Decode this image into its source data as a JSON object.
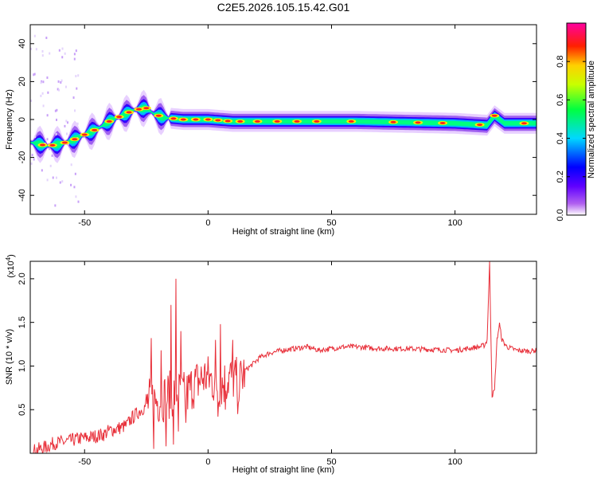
{
  "figure": {
    "title": "C2E5.2026.105.15.42.G01"
  },
  "chart_data": [
    {
      "type": "heatmap",
      "xlabel": "Height of straight line (km)",
      "ylabel": "Frequency (Hz)",
      "xlim": [
        -72,
        133
      ],
      "ylim": [
        -50,
        50
      ],
      "x_ticks": [
        -50,
        0,
        50,
        100
      ],
      "y_ticks": [
        -40,
        -20,
        0,
        20,
        40
      ],
      "colorbar": {
        "label": "Normalized spectral amplitude",
        "range": [
          0,
          1
        ],
        "ticks": [
          "0.0",
          "0.2",
          "0.4",
          "0.6",
          "0.8"
        ],
        "colors": [
          "#ffffff",
          "#8a2be2",
          "#0000ff",
          "#00ffff",
          "#00ff00",
          "#ffff00",
          "#ff0000",
          "#ff00ff"
        ]
      },
      "ridge": [
        {
          "x": -72,
          "f": -12
        },
        {
          "x": -65,
          "f": -14
        },
        {
          "x": -60,
          "f": -13
        },
        {
          "x": -55,
          "f": -11
        },
        {
          "x": -50,
          "f": -8
        },
        {
          "x": -45,
          "f": -5
        },
        {
          "x": -40,
          "f": -1
        },
        {
          "x": -35,
          "f": 2
        },
        {
          "x": -30,
          "f": 5
        },
        {
          "x": -25,
          "f": 6
        },
        {
          "x": -22,
          "f": 3
        },
        {
          "x": -18,
          "f": 1
        },
        {
          "x": -10,
          "f": 0
        },
        {
          "x": 0,
          "f": 0
        },
        {
          "x": 10,
          "f": -1
        },
        {
          "x": 30,
          "f": -1
        },
        {
          "x": 60,
          "f": -1
        },
        {
          "x": 100,
          "f": -2
        },
        {
          "x": 113,
          "f": -3
        },
        {
          "x": 116,
          "f": 2
        },
        {
          "x": 120,
          "f": -2
        },
        {
          "x": 133,
          "f": -2
        }
      ],
      "peaks_x": [
        -67,
        -63,
        -58,
        -54,
        -50,
        -46,
        -40,
        -36,
        -32,
        -28,
        -25,
        -20,
        -14,
        -10,
        -5,
        0,
        4,
        8,
        13,
        20,
        28,
        36,
        44,
        58,
        75,
        85,
        95,
        110,
        116,
        128
      ]
    },
    {
      "type": "line",
      "xlabel": "Height of straight line (km)",
      "ylabel": "SNR (10 * v/v)",
      "y_multiplier": "(x10",
      "y_multiplier_exp": "4",
      "y_multiplier_close": ")",
      "xlim": [
        -72,
        133
      ],
      "ylim": [
        0,
        2.2
      ],
      "x_ticks": [
        -50,
        0,
        50,
        100
      ],
      "y_ticks": [
        "0.5",
        "1.0",
        "1.5",
        "2.0"
      ],
      "color": "#e8303a",
      "series": [
        {
          "points": [
            [
              -72,
              0.02
            ],
            [
              -68,
              0.05
            ],
            [
              -65,
              0.08
            ],
            [
              -62,
              0.12
            ],
            [
              -58,
              0.13
            ],
            [
              -55,
              0.15
            ],
            [
              -52,
              0.17
            ],
            [
              -48,
              0.18
            ],
            [
              -45,
              0.2
            ],
            [
              -42,
              0.22
            ],
            [
              -40,
              0.26
            ],
            [
              -37,
              0.28
            ],
            [
              -35,
              0.3
            ],
            [
              -33,
              0.32
            ],
            [
              -31,
              0.4
            ],
            [
              -29,
              0.45
            ],
            [
              -27,
              0.5
            ],
            [
              -25,
              0.55
            ],
            [
              -23,
              0.62
            ],
            [
              -21,
              0.6
            ],
            [
              -19,
              0.62
            ],
            [
              -17,
              0.65
            ],
            [
              -15,
              0.68
            ],
            [
              -13,
              0.7
            ],
            [
              -11,
              0.68
            ],
            [
              -9,
              0.66
            ],
            [
              -7,
              0.75
            ],
            [
              -5,
              0.8
            ],
            [
              -3,
              0.85
            ],
            [
              -1,
              0.88
            ],
            [
              1,
              0.85
            ],
            [
              3,
              0.8
            ],
            [
              5,
              0.78
            ],
            [
              7,
              0.82
            ],
            [
              9,
              0.88
            ],
            [
              11,
              0.85
            ],
            [
              13,
              0.82
            ],
            [
              15,
              0.95
            ],
            [
              18,
              1.02
            ],
            [
              21,
              1.1
            ],
            [
              25,
              1.15
            ],
            [
              30,
              1.18
            ],
            [
              35,
              1.2
            ],
            [
              40,
              1.22
            ],
            [
              45,
              1.18
            ],
            [
              50,
              1.2
            ],
            [
              55,
              1.22
            ],
            [
              60,
              1.22
            ],
            [
              70,
              1.2
            ],
            [
              80,
              1.2
            ],
            [
              90,
              1.19
            ],
            [
              100,
              1.18
            ],
            [
              105,
              1.2
            ],
            [
              110,
              1.22
            ],
            [
              112,
              1.24
            ],
            [
              113,
              1.3
            ],
            [
              114,
              2.18
            ],
            [
              115,
              0.66
            ],
            [
              116,
              0.72
            ],
            [
              117,
              1.3
            ],
            [
              118,
              1.48
            ],
            [
              119,
              1.3
            ],
            [
              121,
              1.22
            ],
            [
              125,
              1.18
            ],
            [
              130,
              1.17
            ],
            [
              133,
              1.18
            ]
          ]
        }
      ],
      "spikes": [
        {
          "x": -23,
          "y": 1.32
        },
        {
          "x": -22,
          "y": 0.05
        },
        {
          "x": -19,
          "y": 1.18
        },
        {
          "x": -17,
          "y": 0.08
        },
        {
          "x": -15,
          "y": 1.7
        },
        {
          "x": -14,
          "y": 0.1
        },
        {
          "x": -13,
          "y": 2.0
        },
        {
          "x": -12,
          "y": 0.25
        },
        {
          "x": -11,
          "y": 1.4
        },
        {
          "x": -9,
          "y": 0.35
        },
        {
          "x": 3,
          "y": 1.3
        },
        {
          "x": 4,
          "y": 0.42
        },
        {
          "x": 5,
          "y": 1.48
        },
        {
          "x": 7,
          "y": 0.5
        },
        {
          "x": 10,
          "y": 1.3
        },
        {
          "x": 12,
          "y": 0.45
        }
      ]
    }
  ]
}
